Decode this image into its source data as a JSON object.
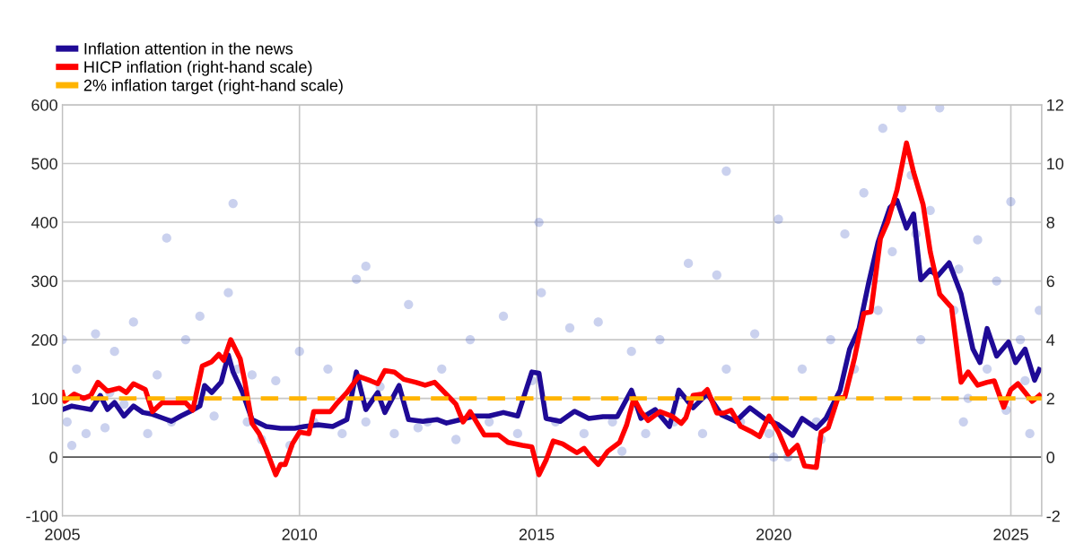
{
  "chart_data": {
    "type": "line",
    "xlim": [
      2005,
      2025.65
    ],
    "xticks": [
      2005,
      2010,
      2015,
      2020,
      2025
    ],
    "ylim": [
      -100,
      600
    ],
    "yticks": [
      -100,
      0,
      100,
      200,
      300,
      400,
      500,
      600
    ],
    "y2lim": [
      -2,
      12
    ],
    "y2ticks": [
      -2,
      0,
      2,
      4,
      6,
      8,
      10,
      12
    ],
    "grid": true,
    "legend": "top left",
    "marker": "none",
    "line_style": "solid",
    "ref_lines": [
      {
        "axis": "y",
        "value": 0,
        "color": "#595959"
      }
    ],
    "series": [
      {
        "type": "scatter",
        "marker": "circle",
        "color": "#5068c6",
        "x": [
          2005.0,
          2005.1,
          2005.3,
          2005.5,
          2005.7,
          2005.9,
          2006.1,
          2006.3,
          2006.5,
          2006.8,
          2007.0,
          2007.2,
          2007.3,
          2007.6,
          2007.9,
          2008.2,
          2008.5,
          2008.6,
          2008.7,
          2008.9,
          2009.2,
          2009.5,
          2009.8,
          2010.0,
          2010.3,
          2010.6,
          2010.9,
          2011.2,
          2011.4,
          2011.4,
          2011.7,
          2012.0,
          2012.3,
          2012.7,
          2013.0,
          2013.3,
          2013.6,
          2014.0,
          2014.3,
          2014.6,
          2014.9,
          2015.05,
          2015.1,
          2015.4,
          2015.7,
          2016.0,
          2016.3,
          2016.6,
          2017.0,
          2017.3,
          2017.6,
          2017.9,
          2018.2,
          2018.5,
          2018.8,
          2019.0,
          2019.3,
          2019.6,
          2019.9,
          2020.1,
          2020.3,
          2020.6,
          2020.9,
          2021.2,
          2021.5,
          2021.7,
          2021.9,
          2022.1,
          2022.3,
          2022.5,
          2022.7,
          2022.9,
          2023.1,
          2023.3,
          2023.5,
          2023.8,
          2023.9,
          2024.1,
          2024.3,
          2024.5,
          2024.7,
          2024.9,
          2025.0,
          2025.2,
          2025.4,
          2025.6,
          2005.2,
          2006.0,
          2009.0,
          2012.5,
          2016.8,
          2019.0,
          2020.0,
          2021.0,
          2022.2,
          2023.0,
          2024.0,
          2025.3
        ],
        "values": [
          200,
          60,
          150,
          40,
          210,
          50,
          180,
          90,
          230,
          40,
          140,
          373,
          60,
          200,
          240,
          70,
          280,
          432,
          150,
          60,
          30,
          130,
          20,
          180,
          60,
          150,
          40,
          303,
          325,
          60,
          120,
          40,
          260,
          60,
          150,
          30,
          200,
          60,
          240,
          40,
          130,
          400,
          280,
          60,
          220,
          40,
          230,
          60,
          180,
          40,
          200,
          60,
          330,
          40,
          310,
          487,
          60,
          210,
          40,
          405,
          0,
          150,
          60,
          200,
          380,
          150,
          450,
          300,
          560,
          350,
          595,
          480,
          200,
          420,
          595,
          250,
          320,
          100,
          370,
          150,
          300,
          80,
          435,
          200,
          40,
          250,
          20,
          110,
          140,
          50,
          10,
          150,
          0,
          30,
          250,
          380,
          60,
          130
        ]
      },
      {
        "name": "Inflation attention in the news",
        "color": "#1f0a96",
        "x": [
          2005.0,
          2005.2,
          2005.4,
          2005.6,
          2005.8,
          2005.95,
          2006.1,
          2006.3,
          2006.5,
          2006.7,
          2006.9,
          2007.1,
          2007.3,
          2007.5,
          2007.7,
          2007.9,
          2008.0,
          2008.15,
          2008.35,
          2008.5,
          2008.6,
          2008.8,
          2009.0,
          2009.3,
          2009.6,
          2009.9,
          2010.1,
          2010.4,
          2010.7,
          2011.0,
          2011.2,
          2011.4,
          2011.65,
          2011.8,
          2012.1,
          2012.3,
          2012.6,
          2012.9,
          2013.1,
          2013.4,
          2013.7,
          2014.0,
          2014.3,
          2014.6,
          2014.9,
          2015.05,
          2015.2,
          2015.5,
          2015.8,
          2016.1,
          2016.4,
          2016.7,
          2017.0,
          2017.2,
          2017.5,
          2017.8,
          2018.0,
          2018.3,
          2018.6,
          2018.9,
          2019.2,
          2019.5,
          2019.8,
          2020.1,
          2020.4,
          2020.6,
          2020.9,
          2021.1,
          2021.4,
          2021.6,
          2021.8,
          2022.0,
          2022.2,
          2022.45,
          2022.6,
          2022.8,
          2022.95,
          2023.1,
          2023.3,
          2023.45,
          2023.7,
          2023.95,
          2024.2,
          2024.35,
          2024.5,
          2024.7,
          2024.95,
          2025.1,
          2025.3,
          2025.5,
          2025.6
        ],
        "values": [
          81,
          87,
          84,
          81,
          105,
          81,
          93,
          70,
          87,
          76,
          73,
          67,
          61,
          70,
          78,
          87,
          122,
          110,
          128,
          174,
          145,
          110,
          64,
          52,
          49,
          49,
          52,
          55,
          52,
          64,
          145,
          81,
          110,
          76,
          122,
          64,
          61,
          64,
          58,
          64,
          70,
          70,
          76,
          70,
          145,
          143,
          66,
          61,
          78,
          66,
          69,
          69,
          114,
          66,
          81,
          52,
          114,
          84,
          108,
          72,
          61,
          84,
          66,
          55,
          37,
          66,
          49,
          66,
          114,
          184,
          219,
          296,
          366,
          425,
          437,
          390,
          414,
          302,
          319,
          308,
          331,
          278,
          184,
          161,
          219,
          172,
          196,
          161,
          184,
          131,
          149
        ]
      },
      {
        "name": "HICP inflation (right-hand scale)",
        "color": "#ff0000",
        "axis": "y2",
        "x": [
          2005.0,
          2005.05,
          2005.25,
          2005.45,
          2005.6,
          2005.75,
          2005.95,
          2006.2,
          2006.35,
          2006.5,
          2006.75,
          2006.9,
          2007.1,
          2007.3,
          2007.6,
          2007.75,
          2007.95,
          2008.15,
          2008.3,
          2008.4,
          2008.55,
          2008.75,
          2008.85,
          2009.0,
          2009.15,
          2009.3,
          2009.5,
          2009.6,
          2009.7,
          2009.85,
          2010.0,
          2010.2,
          2010.3,
          2010.5,
          2010.65,
          2010.8,
          2011.0,
          2011.25,
          2011.5,
          2011.65,
          2011.8,
          2012.0,
          2012.2,
          2012.45,
          2012.65,
          2012.85,
          2013.0,
          2013.3,
          2013.45,
          2013.6,
          2013.9,
          2014.2,
          2014.4,
          2014.7,
          2014.9,
          2015.05,
          2015.2,
          2015.35,
          2015.55,
          2015.7,
          2015.85,
          2016.0,
          2016.15,
          2016.3,
          2016.5,
          2016.75,
          2016.9,
          2017.05,
          2017.2,
          2017.35,
          2017.6,
          2017.85,
          2018.05,
          2018.15,
          2018.3,
          2018.5,
          2018.6,
          2018.8,
          2018.95,
          2019.1,
          2019.3,
          2019.55,
          2019.7,
          2019.9,
          2020.1,
          2020.3,
          2020.5,
          2020.65,
          2020.9,
          2021.0,
          2021.15,
          2021.35,
          2021.5,
          2021.7,
          2021.9,
          2022.05,
          2022.25,
          2022.4,
          2022.6,
          2022.8,
          2022.95,
          2023.15,
          2023.3,
          2023.5,
          2023.75,
          2023.95,
          2024.1,
          2024.3,
          2024.5,
          2024.65,
          2024.85,
          2025.0,
          2025.15,
          2025.3,
          2025.45,
          2025.6
        ],
        "values": [
          2.2,
          1.9,
          2.15,
          2.0,
          2.1,
          2.55,
          2.25,
          2.35,
          2.2,
          2.5,
          2.3,
          1.55,
          1.85,
          1.85,
          1.85,
          1.6,
          3.1,
          3.25,
          3.5,
          3.3,
          4.0,
          3.35,
          2.55,
          1.15,
          0.8,
          0.25,
          -0.6,
          -0.25,
          -0.25,
          0.45,
          0.85,
          0.8,
          1.55,
          1.55,
          1.55,
          1.85,
          2.2,
          2.75,
          2.6,
          2.5,
          2.95,
          2.9,
          2.65,
          2.55,
          2.45,
          2.55,
          2.3,
          1.8,
          1.2,
          1.55,
          0.75,
          0.75,
          0.5,
          0.4,
          0.35,
          -0.6,
          -0.1,
          0.55,
          0.45,
          0.3,
          0.15,
          0.3,
          0.0,
          -0.25,
          0.2,
          0.5,
          1.1,
          2.0,
          1.55,
          1.25,
          1.55,
          1.4,
          1.15,
          1.35,
          2.1,
          2.15,
          2.3,
          1.5,
          1.5,
          1.6,
          1.05,
          0.85,
          0.7,
          1.4,
          0.85,
          0.1,
          0.4,
          -0.3,
          -0.35,
          0.85,
          1.0,
          2.0,
          2.05,
          3.35,
          4.9,
          4.95,
          7.45,
          8.0,
          9.1,
          10.7,
          9.7,
          8.6,
          7.0,
          5.55,
          5.1,
          2.55,
          2.9,
          2.45,
          2.55,
          2.6,
          1.7,
          2.3,
          2.5,
          2.2,
          1.9,
          2.1
        ]
      },
      {
        "name": "2% inflation target (right-hand scale)",
        "color": "#ffb400",
        "axis": "y2",
        "line_style": "dashed",
        "x": [
          2005.0,
          2025.65
        ],
        "values": [
          2,
          2
        ]
      }
    ]
  }
}
